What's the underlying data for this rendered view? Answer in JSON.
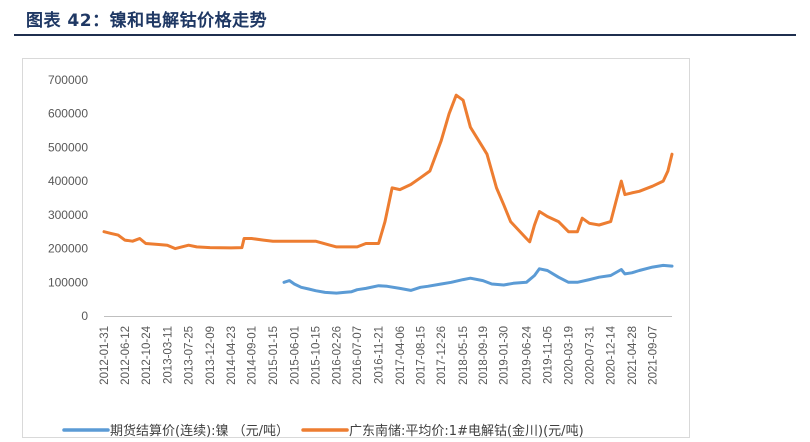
{
  "figure": {
    "title": "图表 42：镍和电解钴价格走势"
  },
  "chart_data": {
    "type": "line",
    "title": "",
    "xlabel": "",
    "ylabel": "",
    "ylim": [
      0,
      700000
    ],
    "yticks": [
      0,
      100000,
      200000,
      300000,
      400000,
      500000,
      600000,
      700000
    ],
    "x_tick_labels": [
      "2012-01-31",
      "2012-06-12",
      "2012-10-24",
      "2013-03-11",
      "2013-07-25",
      "2013-12-09",
      "2014-04-23",
      "2014-09-01",
      "2015-01-15",
      "2015-06-01",
      "2015-10-15",
      "2016-02-26",
      "2016-07-07",
      "2016-11-21",
      "2017-04-06",
      "2017-08-15",
      "2017-12-26",
      "2018-05-15",
      "2018-09-19",
      "2019-01-30",
      "2019-06-24",
      "2019-11-05",
      "2020-03-19",
      "2020-07-31",
      "2020-12-14",
      "2021-04-28",
      "2021-09-07"
    ],
    "grid": false,
    "legend": "bottom",
    "series": [
      {
        "name": "期货结算价(连续):镍 （元/吨）",
        "color": "#5b9bd5",
        "points": [
          [
            "2015-03-27",
            100000
          ],
          [
            "2015-05-01",
            105000
          ],
          [
            "2015-06-01",
            95000
          ],
          [
            "2015-07-15",
            85000
          ],
          [
            "2015-09-01",
            80000
          ],
          [
            "2015-10-15",
            75000
          ],
          [
            "2015-12-15",
            70000
          ],
          [
            "2016-02-26",
            68000
          ],
          [
            "2016-04-15",
            70000
          ],
          [
            "2016-06-01",
            72000
          ],
          [
            "2016-07-07",
            78000
          ],
          [
            "2016-09-01",
            82000
          ],
          [
            "2016-11-21",
            90000
          ],
          [
            "2017-01-15",
            88000
          ],
          [
            "2017-04-06",
            82000
          ],
          [
            "2017-06-15",
            76000
          ],
          [
            "2017-08-15",
            85000
          ],
          [
            "2017-10-01",
            88000
          ],
          [
            "2017-12-26",
            95000
          ],
          [
            "2018-03-01",
            100000
          ],
          [
            "2018-05-15",
            108000
          ],
          [
            "2018-07-01",
            112000
          ],
          [
            "2018-09-19",
            105000
          ],
          [
            "2018-11-15",
            95000
          ],
          [
            "2019-01-30",
            92000
          ],
          [
            "2019-04-01",
            97000
          ],
          [
            "2019-06-24",
            100000
          ],
          [
            "2019-08-15",
            120000
          ],
          [
            "2019-09-15",
            140000
          ],
          [
            "2019-11-05",
            135000
          ],
          [
            "2020-01-15",
            115000
          ],
          [
            "2020-03-19",
            100000
          ],
          [
            "2020-05-15",
            100000
          ],
          [
            "2020-07-31",
            108000
          ],
          [
            "2020-10-01",
            115000
          ],
          [
            "2020-12-14",
            120000
          ],
          [
            "2021-02-20",
            138000
          ],
          [
            "2021-03-15",
            125000
          ],
          [
            "2021-04-28",
            128000
          ],
          [
            "2021-06-15",
            135000
          ],
          [
            "2021-09-07",
            145000
          ],
          [
            "2021-11-15",
            150000
          ],
          [
            "2022-01-10",
            148000
          ]
        ]
      },
      {
        "name": "广东南储:平均价:1#电解钴(金川)(元/吨)",
        "color": "#ed7d31",
        "points": [
          [
            "2012-01-31",
            250000
          ],
          [
            "2012-03-15",
            245000
          ],
          [
            "2012-04-30",
            240000
          ],
          [
            "2012-06-12",
            225000
          ],
          [
            "2012-08-01",
            222000
          ],
          [
            "2012-09-15",
            230000
          ],
          [
            "2012-10-24",
            215000
          ],
          [
            "2013-01-15",
            212000
          ],
          [
            "2013-03-11",
            210000
          ],
          [
            "2013-05-01",
            200000
          ],
          [
            "2013-07-25",
            210000
          ],
          [
            "2013-09-15",
            205000
          ],
          [
            "2013-12-09",
            203000
          ],
          [
            "2014-04-23",
            202000
          ],
          [
            "2014-07-01",
            203000
          ],
          [
            "2014-07-15",
            230000
          ],
          [
            "2014-09-01",
            230000
          ],
          [
            "2014-11-15",
            225000
          ],
          [
            "2015-01-15",
            222000
          ],
          [
            "2015-06-01",
            222000
          ],
          [
            "2015-10-15",
            222000
          ],
          [
            "2016-01-15",
            210000
          ],
          [
            "2016-02-26",
            205000
          ],
          [
            "2016-07-07",
            205000
          ],
          [
            "2016-09-01",
            215000
          ],
          [
            "2016-11-21",
            215000
          ],
          [
            "2017-01-01",
            280000
          ],
          [
            "2017-02-15",
            380000
          ],
          [
            "2017-04-06",
            375000
          ],
          [
            "2017-06-15",
            390000
          ],
          [
            "2017-08-15",
            410000
          ],
          [
            "2017-10-15",
            430000
          ],
          [
            "2017-12-26",
            520000
          ],
          [
            "2018-02-15",
            600000
          ],
          [
            "2018-04-01",
            655000
          ],
          [
            "2018-05-15",
            640000
          ],
          [
            "2018-07-01",
            560000
          ],
          [
            "2018-09-19",
            500000
          ],
          [
            "2018-10-15",
            480000
          ],
          [
            "2018-12-15",
            380000
          ],
          [
            "2019-01-30",
            330000
          ],
          [
            "2019-03-15",
            280000
          ],
          [
            "2019-06-24",
            230000
          ],
          [
            "2019-07-15",
            220000
          ],
          [
            "2019-08-15",
            270000
          ],
          [
            "2019-09-15",
            310000
          ],
          [
            "2019-11-05",
            295000
          ],
          [
            "2020-01-15",
            280000
          ],
          [
            "2020-03-19",
            250000
          ],
          [
            "2020-05-15",
            250000
          ],
          [
            "2020-06-15",
            290000
          ],
          [
            "2020-07-31",
            275000
          ],
          [
            "2020-10-01",
            270000
          ],
          [
            "2020-12-14",
            280000
          ],
          [
            "2021-02-20",
            400000
          ],
          [
            "2021-03-15",
            360000
          ],
          [
            "2021-04-28",
            365000
          ],
          [
            "2021-06-15",
            370000
          ],
          [
            "2021-09-07",
            385000
          ],
          [
            "2021-11-15",
            400000
          ],
          [
            "2021-12-15",
            430000
          ],
          [
            "2022-01-10",
            480000
          ]
        ]
      }
    ]
  }
}
